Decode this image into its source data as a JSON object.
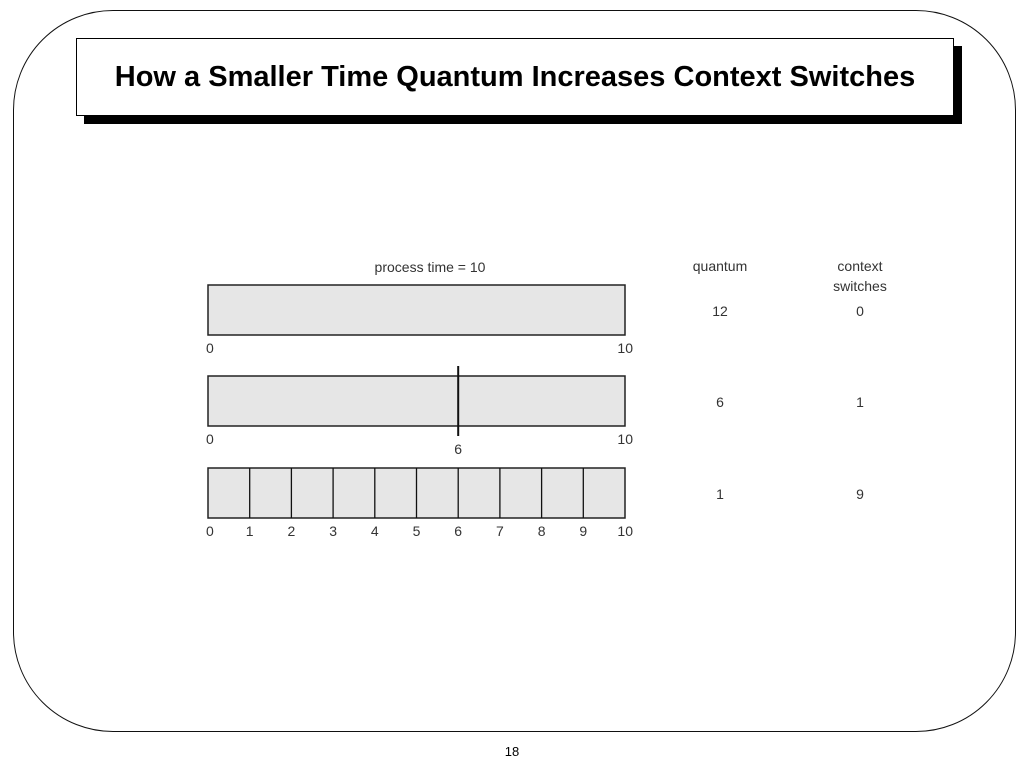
{
  "slide": {
    "title": "How a Smaller Time Quantum Increases Context Switches",
    "page_number": "18"
  },
  "diagram": {
    "process_time_label": "process time = 10",
    "columns": {
      "quantum_header": "quantum",
      "context_switches_header_line1": "context",
      "context_switches_header_line2": "switches"
    },
    "rows": [
      {
        "quantum": "12",
        "context_switches": "0",
        "divisions": [],
        "tick_labels": [
          {
            "value": 0,
            "label": "0"
          },
          {
            "value": 10,
            "label": "10"
          }
        ]
      },
      {
        "quantum": "6",
        "context_switches": "1",
        "divisions": [
          6
        ],
        "tick_labels": [
          {
            "value": 0,
            "label": "0"
          },
          {
            "value": 6,
            "label": "6"
          },
          {
            "value": 10,
            "label": "10"
          }
        ]
      },
      {
        "quantum": "1",
        "context_switches": "9",
        "divisions": [
          1,
          2,
          3,
          4,
          5,
          6,
          7,
          8,
          9
        ],
        "tick_labels": [
          {
            "value": 0,
            "label": "0"
          },
          {
            "value": 1,
            "label": "1"
          },
          {
            "value": 2,
            "label": "2"
          },
          {
            "value": 3,
            "label": "3"
          },
          {
            "value": 4,
            "label": "4"
          },
          {
            "value": 5,
            "label": "5"
          },
          {
            "value": 6,
            "label": "6"
          },
          {
            "value": 7,
            "label": "7"
          },
          {
            "value": 8,
            "label": "8"
          },
          {
            "value": 9,
            "label": "9"
          },
          {
            "value": 10,
            "label": "10"
          }
        ]
      }
    ],
    "bar_fill_color": "#e6e6e6",
    "process_time_max": 10
  }
}
